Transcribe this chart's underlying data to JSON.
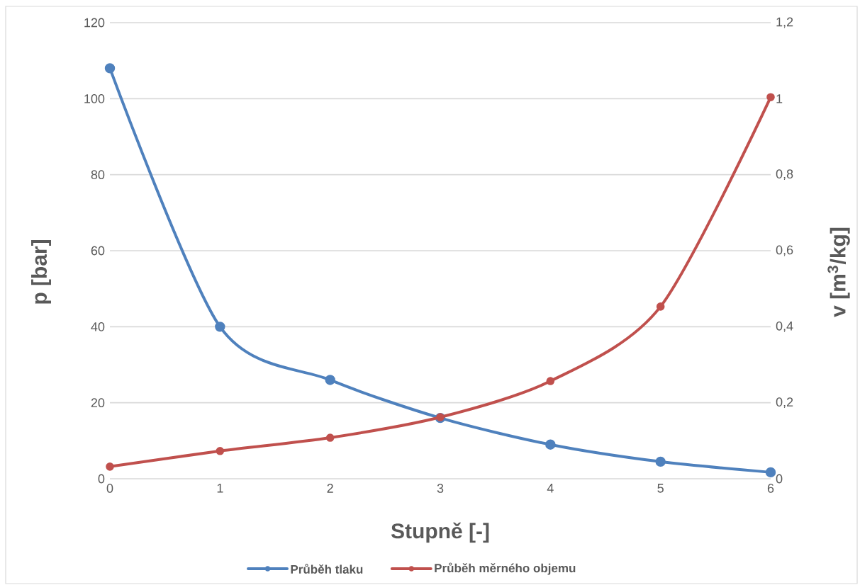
{
  "chart_data": {
    "type": "line",
    "xlabel": "Stupně [-]",
    "ylabel": "p [bar]",
    "y2label": "v [m$^{3}$/kg]",
    "categories": [
      "0",
      "1",
      "2",
      "3",
      "4",
      "5",
      "6"
    ],
    "series": [
      {
        "name": "Průběh tlaku",
        "color": "#4f81bd",
        "values": [
          108,
          40,
          26,
          16,
          9,
          4.5,
          1.7
        ]
      },
      {
        "name": "Průběh měrného objemu",
        "color": "#c0504d",
        "axis": "y2",
        "values": [
          0.032,
          0.073,
          0.108,
          0.162,
          0.257,
          0.453,
          1.004
        ]
      }
    ],
    "ylim": [
      0,
      120
    ],
    "yticks": [
      0,
      20,
      40,
      60,
      80,
      100,
      120
    ],
    "y2lim": [
      0,
      1.2
    ],
    "y2ticks": [
      0,
      {
        "value": 0.2,
        "label": "0,2"
      },
      {
        "value": 0.4,
        "label": "0,4"
      },
      {
        "value": 0.6,
        "label": "0,6"
      },
      {
        "value": 0.8,
        "label": "0,8"
      },
      1,
      {
        "value": 1.2,
        "label": "1,2"
      }
    ],
    "grid": "y",
    "legend": "bottom",
    "marker": "circle",
    "line_style": "solid"
  }
}
